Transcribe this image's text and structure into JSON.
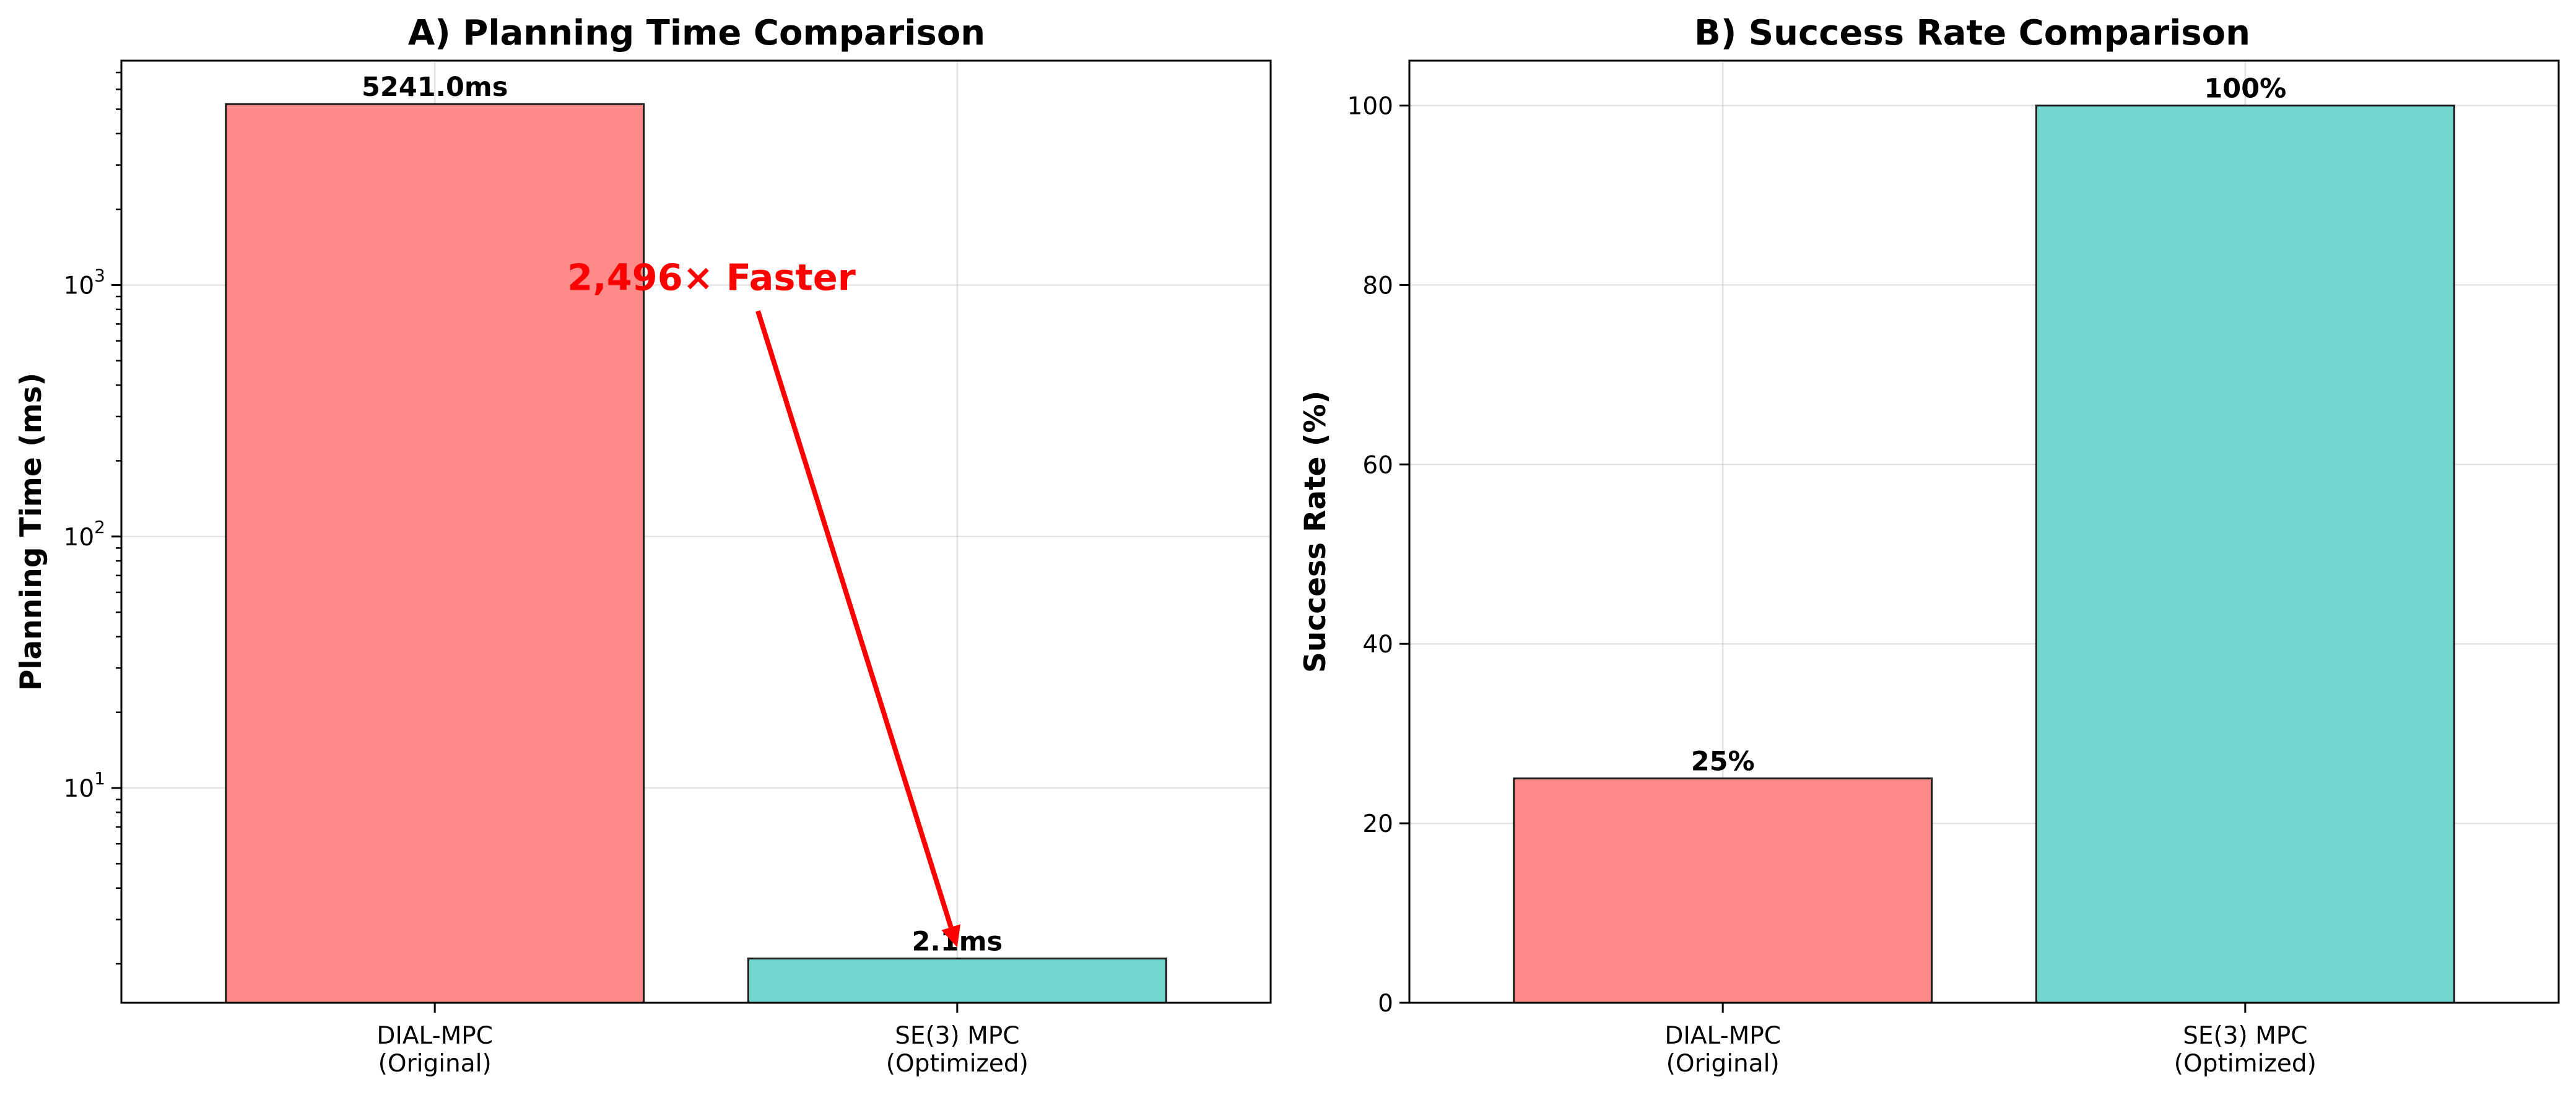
{
  "chart_data": [
    {
      "type": "bar",
      "title": "A) Planning Time Comparison",
      "ylabel": "Planning Time (ms)",
      "xlabel": "",
      "yscale": "log",
      "ylim": [
        1.4,
        7800
      ],
      "grid": true,
      "categories": [
        [
          "DIAL-MPC",
          "(Original)"
        ],
        [
          "SE(3) MPC",
          "(Optimized)"
        ]
      ],
      "values": [
        5241.0,
        2.1
      ],
      "value_labels": [
        "5241.0ms",
        "2.1ms"
      ],
      "colors": [
        "#ff8a8a",
        "#72d6cf"
      ],
      "ytick_major": [
        {
          "base": "10",
          "exp": "1",
          "value": 10
        },
        {
          "base": "10",
          "exp": "2",
          "value": 100
        },
        {
          "base": "10",
          "exp": "3",
          "value": 1000
        }
      ],
      "annotation": {
        "text": "2,496× Faster",
        "color": "#ff0000",
        "from": [
          0.5,
          1000
        ],
        "to": [
          1,
          2.1
        ]
      }
    },
    {
      "type": "bar",
      "title": "B) Success Rate Comparison",
      "ylabel": "Success Rate (%)",
      "xlabel": "",
      "yscale": "linear",
      "ylim": [
        0,
        105
      ],
      "grid": true,
      "categories": [
        [
          "DIAL-MPC",
          "(Original)"
        ],
        [
          "SE(3) MPC",
          "(Optimized)"
        ]
      ],
      "values": [
        25,
        100
      ],
      "value_labels": [
        "25%",
        "100%"
      ],
      "colors": [
        "#ff8a8a",
        "#72d6cf"
      ],
      "yticks": [
        0,
        20,
        40,
        60,
        80,
        100
      ]
    }
  ]
}
